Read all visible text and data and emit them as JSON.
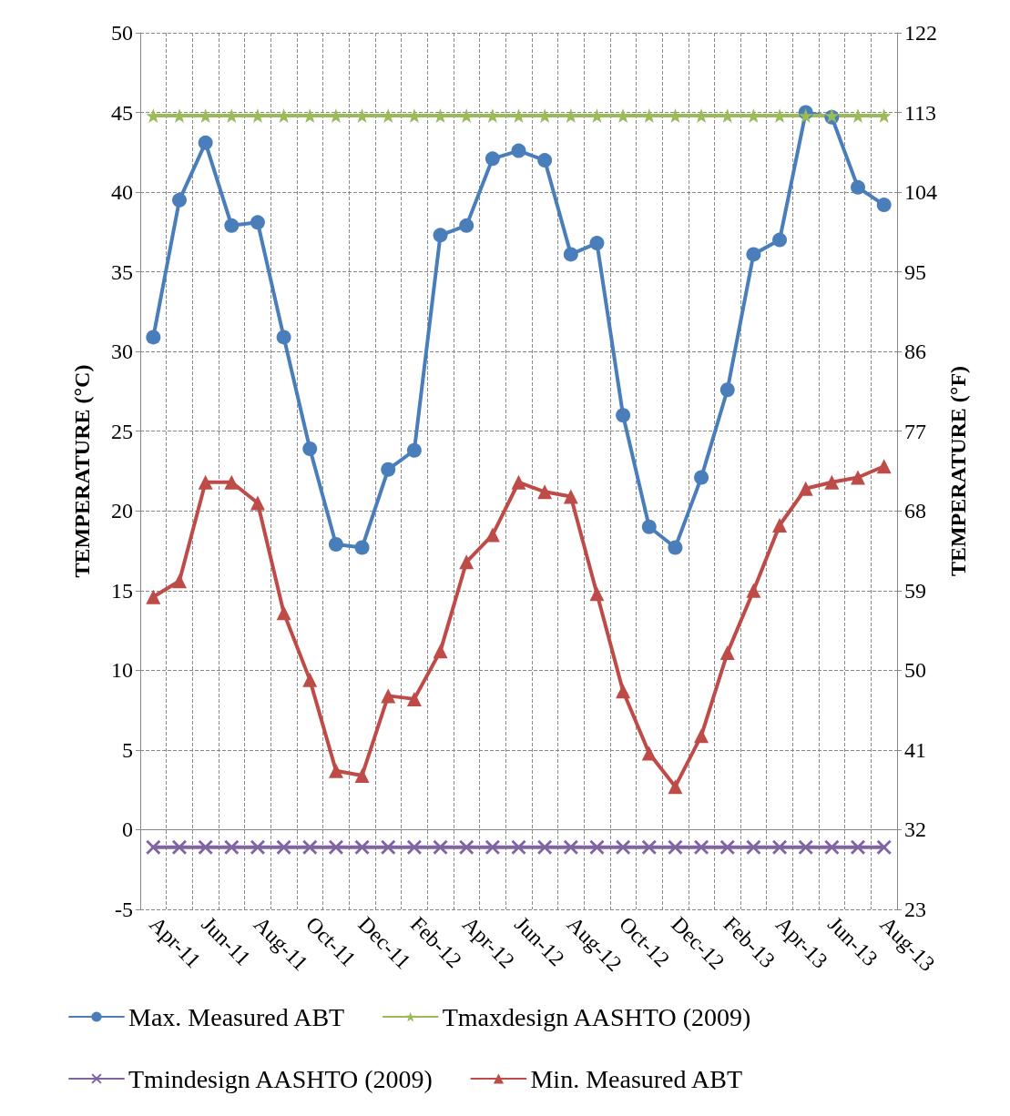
{
  "chart_data": {
    "type": "line",
    "categories": [
      "Apr-11",
      null,
      "Jun-11",
      null,
      "Aug-11",
      null,
      "Oct-11",
      null,
      "Dec-11",
      null,
      "Feb-12",
      null,
      "Apr-12",
      null,
      "Jun-12",
      null,
      "Aug-12",
      null,
      "Oct-12",
      null,
      "Dec-12",
      null,
      "Feb-13",
      null,
      "Apr-13",
      null,
      "Jun-13",
      null,
      "Aug-13"
    ],
    "series": [
      {
        "name": "Max. Measured ABT",
        "color": "#4a7ebb",
        "marker": "circle",
        "values": [
          30.9,
          39.5,
          43.1,
          37.9,
          38.1,
          30.9,
          23.9,
          17.9,
          17.7,
          22.6,
          23.8,
          37.3,
          37.9,
          42.1,
          42.6,
          42.0,
          36.1,
          36.8,
          26.0,
          19.0,
          17.7,
          22.1,
          27.6,
          36.1,
          37.0,
          45.0,
          44.7,
          40.3,
          39.2
        ]
      },
      {
        "name": "Tmaxdesign AASHTO (2009)",
        "color": "#9bbb59",
        "marker": "star",
        "values": [
          44.8,
          44.8,
          44.8,
          44.8,
          44.8,
          44.8,
          44.8,
          44.8,
          44.8,
          44.8,
          44.8,
          44.8,
          44.8,
          44.8,
          44.8,
          44.8,
          44.8,
          44.8,
          44.8,
          44.8,
          44.8,
          44.8,
          44.8,
          44.8,
          44.8,
          44.8,
          44.8,
          44.8,
          44.8
        ]
      },
      {
        "name": "Tmindesign AASHTO (2009)",
        "color": "#8064a2",
        "marker": "cross",
        "values": [
          -1.1,
          -1.1,
          -1.1,
          -1.1,
          -1.1,
          -1.1,
          -1.1,
          -1.1,
          -1.1,
          -1.1,
          -1.1,
          -1.1,
          -1.1,
          -1.1,
          -1.1,
          -1.1,
          -1.1,
          -1.1,
          -1.1,
          -1.1,
          -1.1,
          -1.1,
          -1.1,
          -1.1,
          -1.1,
          -1.1,
          -1.1,
          -1.1,
          -1.1
        ]
      },
      {
        "name": "Min. Measured ABT",
        "color": "#be4b48",
        "marker": "triangle",
        "values": [
          14.6,
          15.6,
          21.8,
          21.8,
          20.5,
          13.6,
          9.4,
          3.7,
          3.4,
          8.4,
          8.2,
          11.2,
          16.8,
          18.5,
          21.8,
          21.2,
          20.9,
          14.8,
          8.7,
          4.8,
          2.7,
          5.9,
          11.1,
          15.0,
          19.1,
          21.4,
          21.8,
          22.1,
          22.8
        ]
      }
    ],
    "ylabel": "TEMPERATURE (°C)",
    "y2label": "TEMPERATURE (°F)",
    "ylim": [
      -5,
      50
    ],
    "yticks": [
      -5,
      0,
      5,
      10,
      15,
      20,
      25,
      30,
      35,
      40,
      45,
      50
    ],
    "y2lim": [
      23,
      122
    ],
    "y2ticks": [
      23,
      32,
      41,
      50,
      59,
      68,
      77,
      86,
      95,
      104,
      113,
      122
    ],
    "grid": true,
    "legend": "bottom",
    "line_style": "solid"
  }
}
